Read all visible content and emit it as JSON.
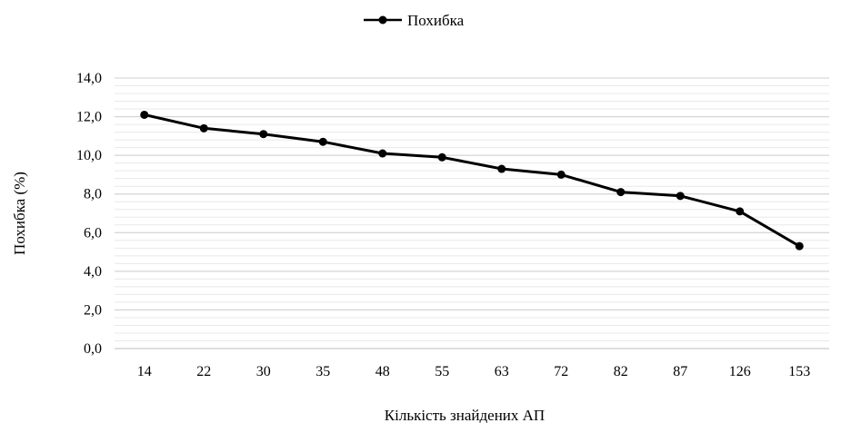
{
  "chart_data": {
    "type": "line",
    "categories": [
      "14",
      "22",
      "30",
      "35",
      "48",
      "55",
      "63",
      "72",
      "82",
      "87",
      "126",
      "153"
    ],
    "series": [
      {
        "name": "Похибка",
        "values": [
          12.1,
          11.4,
          11.1,
          10.7,
          10.1,
          9.9,
          9.3,
          9.0,
          8.1,
          7.9,
          7.1,
          5.3
        ],
        "color": "#000000"
      }
    ],
    "xlabel": "Кількість знайдених АП",
    "ylabel": "Похибка  (%)",
    "ylim": [
      0,
      14
    ],
    "y_ticks": [
      "0,0",
      "2,0",
      "4,0",
      "6,0",
      "8,0",
      "10,0",
      "12,0",
      "14,0"
    ],
    "grid": true,
    "minor_grid": true,
    "legend_position": "top"
  }
}
